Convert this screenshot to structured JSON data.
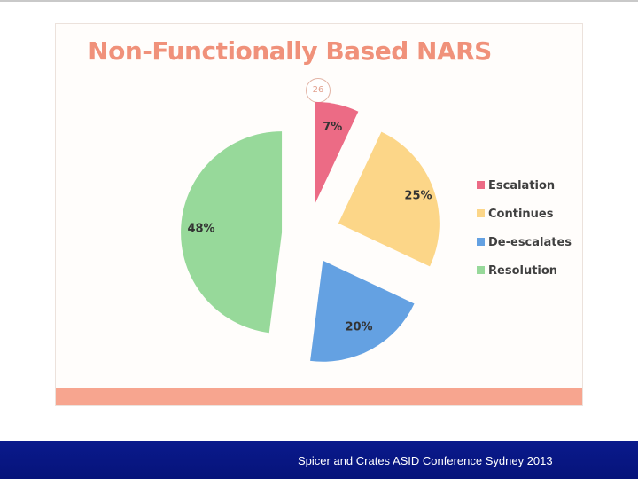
{
  "slide": {
    "title": "Non-Functionally Based NARS",
    "page_number": "26"
  },
  "footer": {
    "text": "Spicer and Crates ASID Conference Sydney 2013"
  },
  "chart_data": {
    "type": "pie",
    "title": "Non-Functionally Based NARS",
    "exploded": true,
    "legend_position": "right",
    "slices": [
      {
        "label": "Escalation",
        "value": 7,
        "display": "7%",
        "color": "#ec6b85"
      },
      {
        "label": "Continues",
        "value": 25,
        "display": "25%",
        "color": "#fcd688"
      },
      {
        "label": "De-escalates",
        "value": 20,
        "display": "20%",
        "color": "#64a1e2"
      },
      {
        "label": "Resolution",
        "value": 48,
        "display": "48%",
        "color": "#97d99a"
      }
    ]
  }
}
